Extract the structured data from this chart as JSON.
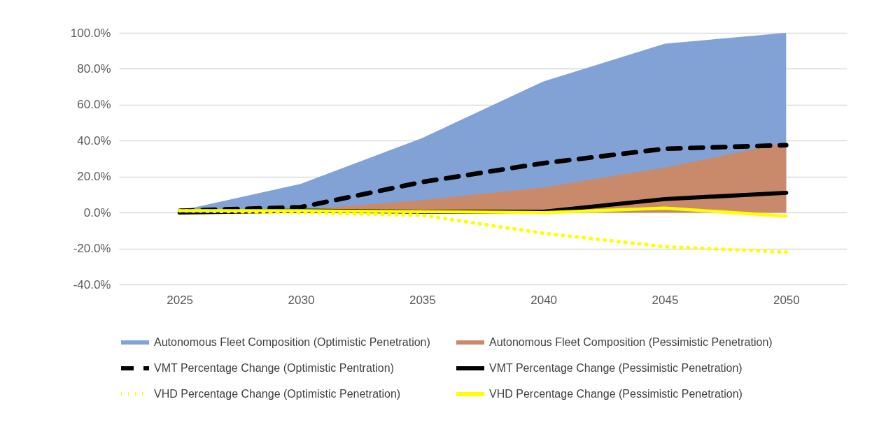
{
  "chart_data": {
    "type": "area",
    "categories": [
      "2025",
      "2030",
      "2035",
      "2040",
      "2045",
      "2050"
    ],
    "ylim": [
      -40,
      100
    ],
    "yticks": [
      {
        "value": -40,
        "label": "-40.0%"
      },
      {
        "value": -20,
        "label": "-20.0%"
      },
      {
        "value": 0,
        "label": "0.0%"
      },
      {
        "value": 20,
        "label": "20.0%"
      },
      {
        "value": 40,
        "label": "40.0%"
      },
      {
        "value": 60,
        "label": "60.0%"
      },
      {
        "value": 80,
        "label": "80.0%"
      },
      {
        "value": 100,
        "label": "100.0%"
      }
    ],
    "grid": "y",
    "legend": "bottom",
    "series": [
      {
        "name": "Autonomous Fleet Composition (Optimistic Penetration)",
        "color": "#82a2d6",
        "values": [
          1,
          16,
          41.5,
          73,
          94,
          100
        ]
      },
      {
        "name": "Autonomous Fleet Composition (Pessimistic Penetration)",
        "color": "#c98a6b",
        "values": [
          0.5,
          1.5,
          7,
          14,
          25,
          39
        ]
      },
      {
        "name": "VMT Percentage Change (Optimistic Pentration)",
        "type": "line",
        "line_style": "dashed",
        "color": "#000000",
        "values": [
          1,
          3,
          17,
          27.5,
          35.5,
          37.5
        ]
      },
      {
        "name": "VMT Percentage Change (Pessimistic Penetration)",
        "type": "line",
        "line_style": "solid",
        "color": "#000000",
        "values": [
          0,
          1,
          0.5,
          0.5,
          7.5,
          11
        ]
      },
      {
        "name": "VHD Percentage Change (Optimistic Penetration)",
        "type": "line",
        "line_style": "dotted",
        "color": "#ffff00",
        "values": [
          1,
          0,
          -1.5,
          -11.5,
          -19,
          -22
        ]
      },
      {
        "name": "VHD Percentage Change (Pessimistic Penetration)",
        "type": "line",
        "line_style": "solid",
        "color": "#ffff00",
        "values": [
          1,
          1,
          0.5,
          0,
          2.5,
          -2
        ]
      }
    ]
  }
}
